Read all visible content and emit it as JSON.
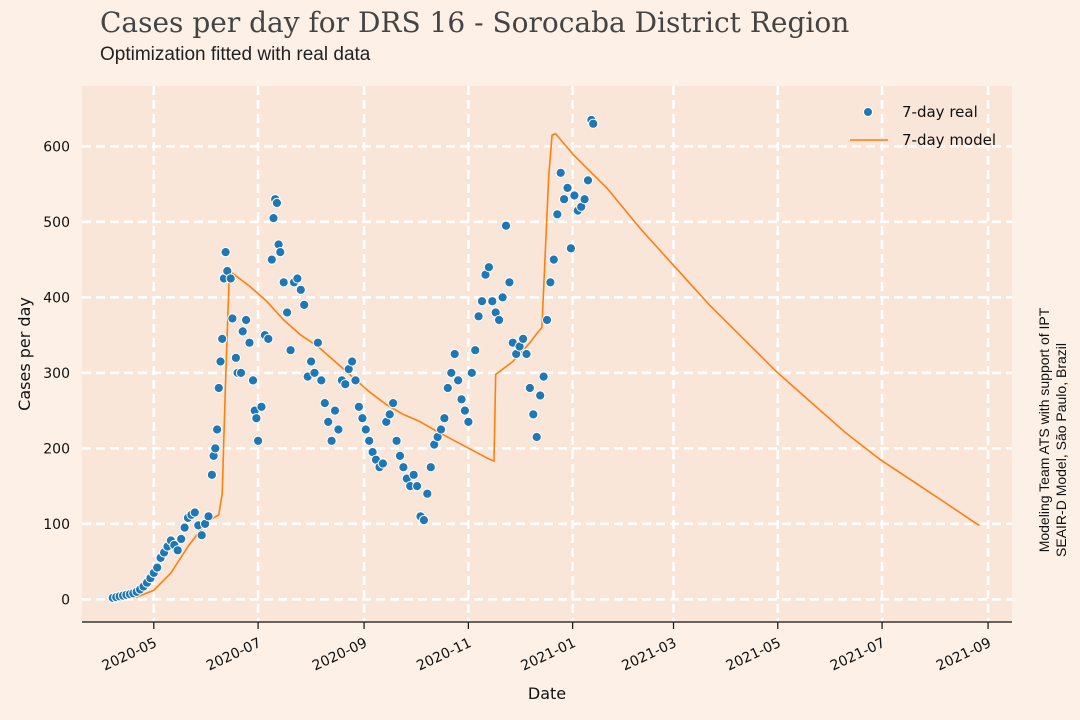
{
  "title": "Cases per day for DRS 16 - Sorocaba District Region",
  "subtitle": "Optimization fitted with real data",
  "credit_line1": "Modeling Team ATS with support of IPT",
  "credit_line2": "SEAIR-D Model, São Paulo, Brazil",
  "colors": {
    "background": "#fdf0e6",
    "plot_bg": "#f9e6d9",
    "grid": "#ffffff",
    "real": "#1f77b4",
    "model": "#ff7f0e"
  },
  "chart_data": {
    "type": "scatter",
    "xlabel": "Date",
    "ylabel": "Cases per day",
    "xlim": [
      "2020-03-20",
      "2021-09-15"
    ],
    "ylim": [
      -30,
      680
    ],
    "grid": true,
    "legend_position": "top-right",
    "x_ticks": [
      "2020-05",
      "2020-07",
      "2020-09",
      "2020-11",
      "2021-01",
      "2021-03",
      "2021-05",
      "2021-07",
      "2021-09"
    ],
    "y_ticks": [
      0,
      100,
      200,
      300,
      400,
      500,
      600
    ],
    "series": [
      {
        "name": "7-day real",
        "kind": "scatter",
        "points": [
          [
            "2020-04-07",
            2
          ],
          [
            "2020-04-09",
            3
          ],
          [
            "2020-04-11",
            4
          ],
          [
            "2020-04-13",
            5
          ],
          [
            "2020-04-15",
            6
          ],
          [
            "2020-04-17",
            7
          ],
          [
            "2020-04-19",
            8
          ],
          [
            "2020-04-21",
            10
          ],
          [
            "2020-04-23",
            13
          ],
          [
            "2020-04-25",
            17
          ],
          [
            "2020-04-27",
            22
          ],
          [
            "2020-04-29",
            28
          ],
          [
            "2020-05-01",
            35
          ],
          [
            "2020-05-03",
            42
          ],
          [
            "2020-05-05",
            55
          ],
          [
            "2020-05-07",
            62
          ],
          [
            "2020-05-09",
            70
          ],
          [
            "2020-05-11",
            78
          ],
          [
            "2020-05-13",
            72
          ],
          [
            "2020-05-15",
            65
          ],
          [
            "2020-05-17",
            80
          ],
          [
            "2020-05-19",
            95
          ],
          [
            "2020-05-21",
            108
          ],
          [
            "2020-05-23",
            112
          ],
          [
            "2020-05-25",
            115
          ],
          [
            "2020-05-27",
            98
          ],
          [
            "2020-05-29",
            85
          ],
          [
            "2020-05-31",
            100
          ],
          [
            "2020-06-02",
            110
          ],
          [
            "2020-06-04",
            165
          ],
          [
            "2020-06-05",
            190
          ],
          [
            "2020-06-06",
            200
          ],
          [
            "2020-06-07",
            225
          ],
          [
            "2020-06-08",
            280
          ],
          [
            "2020-06-09",
            315
          ],
          [
            "2020-06-10",
            345
          ],
          [
            "2020-06-11",
            425
          ],
          [
            "2020-06-12",
            460
          ],
          [
            "2020-06-13",
            435
          ],
          [
            "2020-06-15",
            425
          ],
          [
            "2020-06-16",
            372
          ],
          [
            "2020-06-18",
            320
          ],
          [
            "2020-06-19",
            300
          ],
          [
            "2020-06-21",
            300
          ],
          [
            "2020-06-22",
            355
          ],
          [
            "2020-06-24",
            370
          ],
          [
            "2020-06-26",
            340
          ],
          [
            "2020-06-28",
            290
          ],
          [
            "2020-06-29",
            250
          ],
          [
            "2020-06-30",
            240
          ],
          [
            "2020-07-01",
            210
          ],
          [
            "2020-07-03",
            255
          ],
          [
            "2020-07-05",
            350
          ],
          [
            "2020-07-07",
            345
          ],
          [
            "2020-07-09",
            450
          ],
          [
            "2020-07-10",
            505
          ],
          [
            "2020-07-11",
            530
          ],
          [
            "2020-07-12",
            525
          ],
          [
            "2020-07-13",
            470
          ],
          [
            "2020-07-14",
            460
          ],
          [
            "2020-07-16",
            420
          ],
          [
            "2020-07-18",
            380
          ],
          [
            "2020-07-20",
            330
          ],
          [
            "2020-07-22",
            420
          ],
          [
            "2020-07-24",
            425
          ],
          [
            "2020-07-26",
            410
          ],
          [
            "2020-07-28",
            390
          ],
          [
            "2020-07-30",
            295
          ],
          [
            "2020-08-01",
            315
          ],
          [
            "2020-08-03",
            300
          ],
          [
            "2020-08-05",
            340
          ],
          [
            "2020-08-07",
            290
          ],
          [
            "2020-08-09",
            260
          ],
          [
            "2020-08-11",
            235
          ],
          [
            "2020-08-13",
            210
          ],
          [
            "2020-08-15",
            250
          ],
          [
            "2020-08-17",
            225
          ],
          [
            "2020-08-19",
            290
          ],
          [
            "2020-08-21",
            285
          ],
          [
            "2020-08-23",
            305
          ],
          [
            "2020-08-25",
            315
          ],
          [
            "2020-08-27",
            290
          ],
          [
            "2020-08-29",
            255
          ],
          [
            "2020-08-31",
            240
          ],
          [
            "2020-09-02",
            225
          ],
          [
            "2020-09-04",
            210
          ],
          [
            "2020-09-06",
            195
          ],
          [
            "2020-09-08",
            185
          ],
          [
            "2020-09-10",
            175
          ],
          [
            "2020-09-12",
            180
          ],
          [
            "2020-09-14",
            235
          ],
          [
            "2020-09-16",
            245
          ],
          [
            "2020-09-18",
            260
          ],
          [
            "2020-09-20",
            210
          ],
          [
            "2020-09-22",
            190
          ],
          [
            "2020-09-24",
            175
          ],
          [
            "2020-09-26",
            160
          ],
          [
            "2020-09-28",
            150
          ],
          [
            "2020-09-30",
            165
          ],
          [
            "2020-10-02",
            150
          ],
          [
            "2020-10-04",
            110
          ],
          [
            "2020-10-06",
            105
          ],
          [
            "2020-10-08",
            140
          ],
          [
            "2020-10-10",
            175
          ],
          [
            "2020-10-12",
            205
          ],
          [
            "2020-10-14",
            215
          ],
          [
            "2020-10-16",
            225
          ],
          [
            "2020-10-18",
            240
          ],
          [
            "2020-10-20",
            280
          ],
          [
            "2020-10-22",
            300
          ],
          [
            "2020-10-24",
            325
          ],
          [
            "2020-10-26",
            290
          ],
          [
            "2020-10-28",
            265
          ],
          [
            "2020-10-30",
            250
          ],
          [
            "2020-11-01",
            235
          ],
          [
            "2020-11-03",
            300
          ],
          [
            "2020-11-05",
            330
          ],
          [
            "2020-11-07",
            375
          ],
          [
            "2020-11-09",
            395
          ],
          [
            "2020-11-11",
            430
          ],
          [
            "2020-11-13",
            440
          ],
          [
            "2020-11-15",
            395
          ],
          [
            "2020-11-17",
            380
          ],
          [
            "2020-11-19",
            370
          ],
          [
            "2020-11-21",
            400
          ],
          [
            "2020-11-23",
            495
          ],
          [
            "2020-11-25",
            420
          ],
          [
            "2020-11-27",
            340
          ],
          [
            "2020-11-29",
            325
          ],
          [
            "2020-12-01",
            335
          ],
          [
            "2020-12-03",
            345
          ],
          [
            "2020-12-05",
            325
          ],
          [
            "2020-12-07",
            280
          ],
          [
            "2020-12-09",
            245
          ],
          [
            "2020-12-11",
            215
          ],
          [
            "2020-12-13",
            270
          ],
          [
            "2020-12-15",
            295
          ],
          [
            "2020-12-17",
            370
          ],
          [
            "2020-12-19",
            420
          ],
          [
            "2020-12-21",
            450
          ],
          [
            "2020-12-23",
            510
          ],
          [
            "2020-12-25",
            565
          ],
          [
            "2020-12-27",
            530
          ],
          [
            "2020-12-29",
            545
          ],
          [
            "2020-12-31",
            465
          ],
          [
            "2021-01-02",
            535
          ],
          [
            "2021-01-04",
            515
          ],
          [
            "2021-01-06",
            520
          ],
          [
            "2021-01-08",
            530
          ],
          [
            "2021-01-10",
            555
          ],
          [
            "2021-01-12",
            635
          ],
          [
            "2021-01-13",
            630
          ]
        ]
      },
      {
        "name": "7-day model",
        "kind": "line",
        "points": [
          [
            "2020-04-07",
            0
          ],
          [
            "2020-04-21",
            3
          ],
          [
            "2020-05-01",
            12
          ],
          [
            "2020-05-11",
            35
          ],
          [
            "2020-05-21",
            70
          ],
          [
            "2020-05-31",
            100
          ],
          [
            "2020-06-05",
            108
          ],
          [
            "2020-06-08",
            112
          ],
          [
            "2020-06-10",
            140
          ],
          [
            "2020-06-12",
            290
          ],
          [
            "2020-06-14",
            420
          ],
          [
            "2020-06-16",
            432
          ],
          [
            "2020-06-26",
            415
          ],
          [
            "2020-07-06",
            395
          ],
          [
            "2020-07-16",
            370
          ],
          [
            "2020-07-26",
            350
          ],
          [
            "2020-08-05",
            335
          ],
          [
            "2020-08-15",
            315
          ],
          [
            "2020-08-25",
            295
          ],
          [
            "2020-09-04",
            275
          ],
          [
            "2020-09-14",
            258
          ],
          [
            "2020-09-24",
            245
          ],
          [
            "2020-10-04",
            235
          ],
          [
            "2020-10-14",
            222
          ],
          [
            "2020-10-24",
            210
          ],
          [
            "2020-11-03",
            198
          ],
          [
            "2020-11-13",
            186
          ],
          [
            "2020-11-16",
            183
          ],
          [
            "2020-11-17",
            298
          ],
          [
            "2020-11-27",
            315
          ],
          [
            "2020-12-07",
            340
          ],
          [
            "2020-12-12",
            355
          ],
          [
            "2020-12-14",
            360
          ],
          [
            "2020-12-16",
            460
          ],
          [
            "2020-12-18",
            560
          ],
          [
            "2020-12-20",
            615
          ],
          [
            "2020-12-22",
            617
          ],
          [
            "2021-01-01",
            590
          ],
          [
            "2021-01-21",
            545
          ],
          [
            "2021-02-10",
            490
          ],
          [
            "2021-03-02",
            440
          ],
          [
            "2021-03-22",
            390
          ],
          [
            "2021-04-11",
            345
          ],
          [
            "2021-05-01",
            300
          ],
          [
            "2021-05-21",
            260
          ],
          [
            "2021-06-10",
            220
          ],
          [
            "2021-06-30",
            185
          ],
          [
            "2021-07-20",
            155
          ],
          [
            "2021-08-09",
            125
          ],
          [
            "2021-08-24",
            102
          ],
          [
            "2021-08-27",
            98
          ]
        ]
      }
    ]
  }
}
